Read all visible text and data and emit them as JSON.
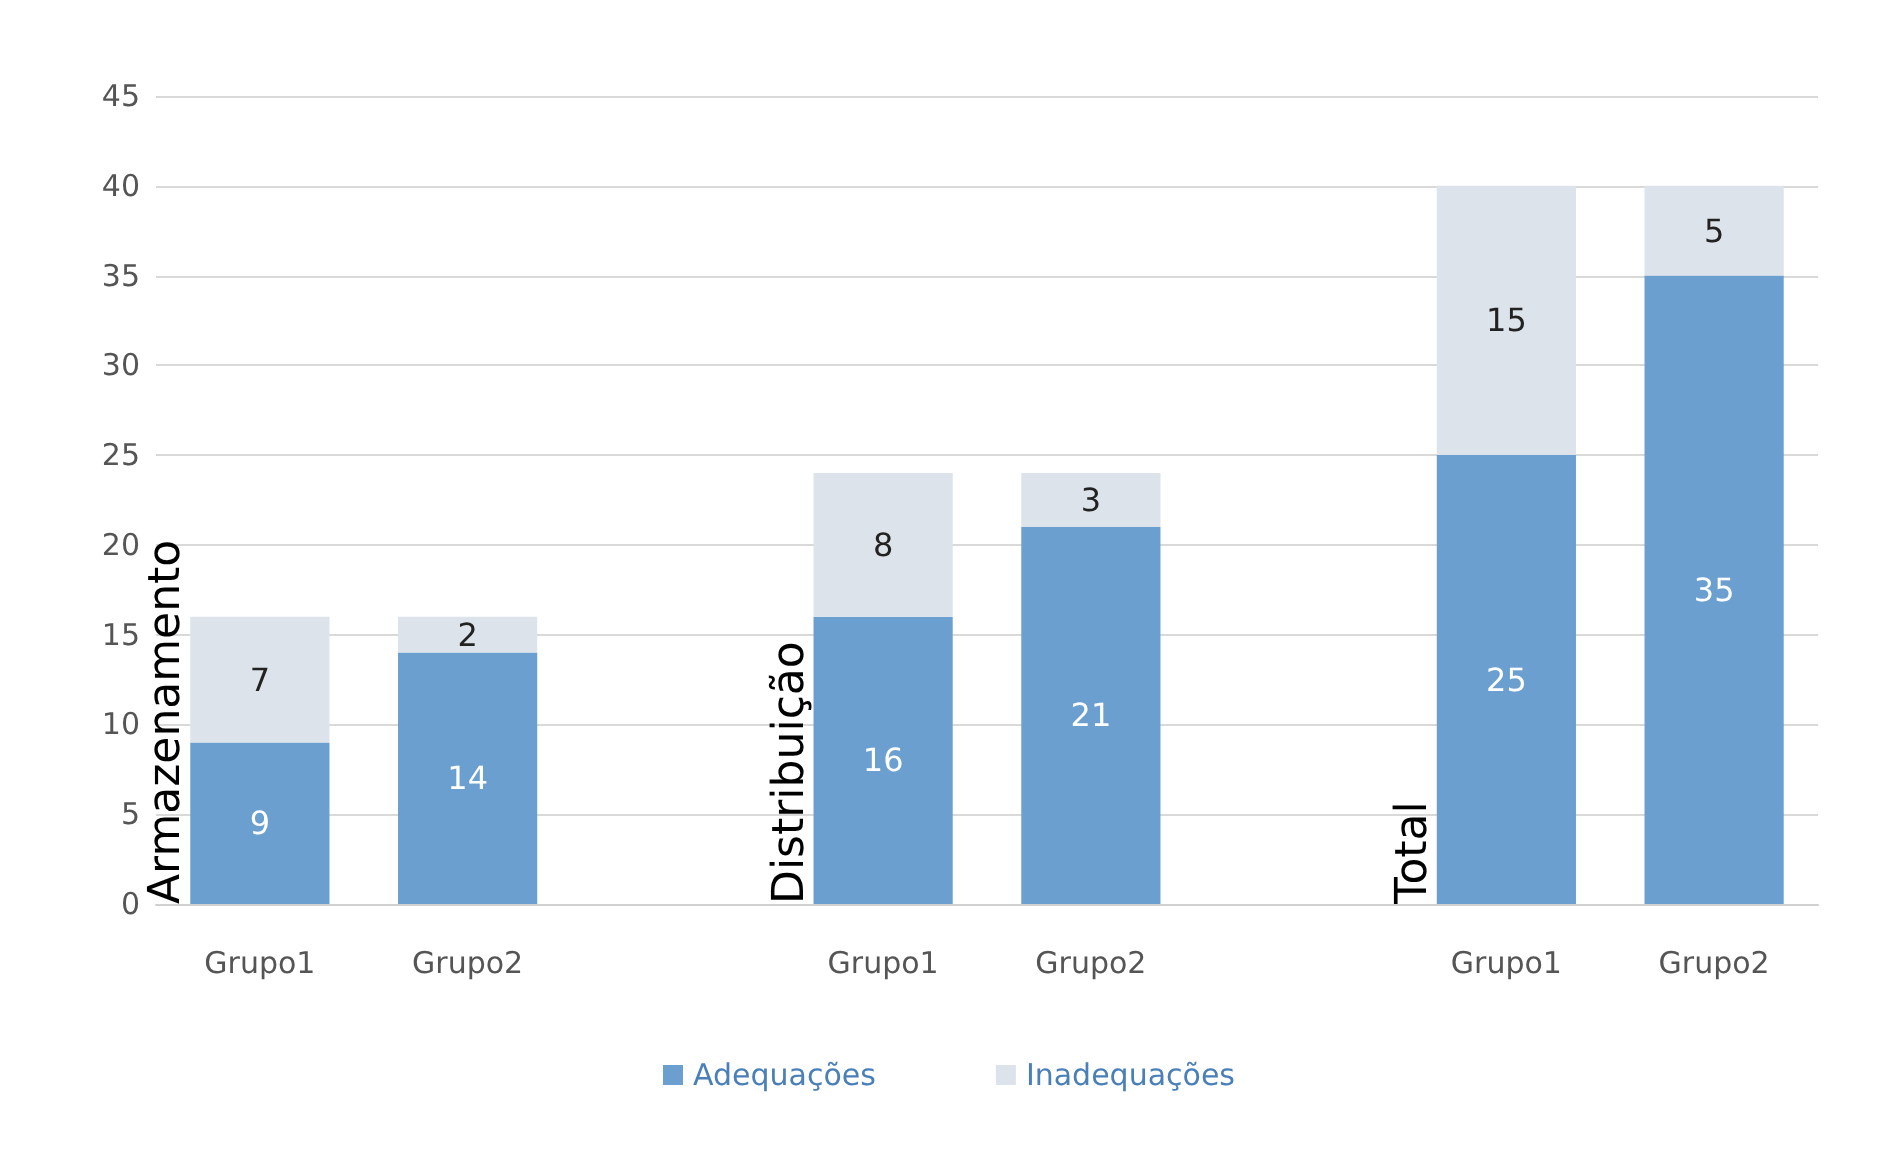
{
  "chart_data": {
    "type": "bar",
    "stacked": true,
    "categories": [
      "Grupo1",
      "Grupo2",
      null,
      "Grupo1",
      "Grupo2",
      null,
      "Grupo1",
      "Grupo2"
    ],
    "series": [
      {
        "name": "Adequações",
        "color": "#6a9fd0",
        "values": [
          9,
          14,
          null,
          16,
          21,
          null,
          25,
          35
        ]
      },
      {
        "name": "Inadequações",
        "color": "#dde3ea",
        "values": [
          7,
          2,
          null,
          8,
          3,
          null,
          15,
          5
        ]
      }
    ],
    "ylim": [
      0,
      45
    ],
    "yticks": [
      0,
      5,
      10,
      15,
      20,
      25,
      30,
      35,
      40,
      45
    ],
    "grid": "y",
    "legend": "bottom",
    "data_labels": true,
    "annotations": [
      "Armazenamento",
      "Distribuição",
      "Total"
    ]
  }
}
